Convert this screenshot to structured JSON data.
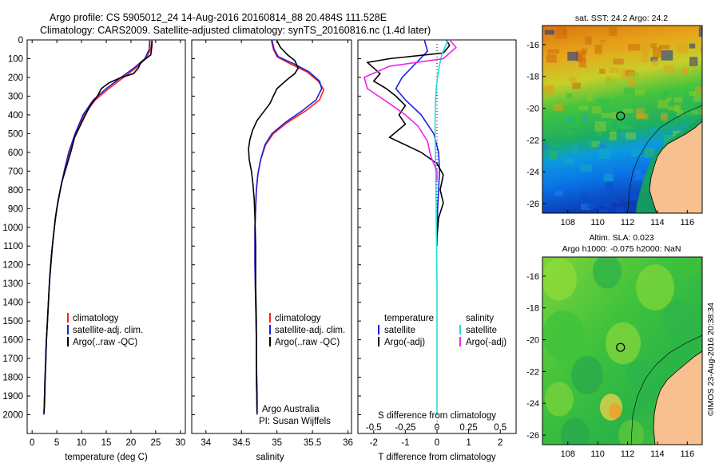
{
  "header": {
    "line1": "Argo profile: CS 5905012_24 14-Aug-2016 20160814_88 20.484S 111.528E",
    "line2": "Climatology: CARS2009. Satellite-adjusted climatology: synTS_20160816.nc (1.4d later)"
  },
  "colors": {
    "climatology": "#ff2020",
    "satellite": "#1f1fdd",
    "argo": "#000000",
    "argo_salinity_diff": "#ee22ee",
    "satellite_salinity_diff": "#22dddd",
    "land": "#f7c08e"
  },
  "chart_data": [
    {
      "type": "line",
      "name": "temperature-profile",
      "xlabel": "temperature (deg C)",
      "ylabel": "",
      "xlim": [
        -1,
        31
      ],
      "ylim": [
        2100,
        0
      ],
      "xticks": [
        0,
        5,
        10,
        15,
        20,
        25,
        30
      ],
      "yticks": [
        0,
        100,
        200,
        300,
        400,
        500,
        600,
        700,
        800,
        900,
        1000,
        1100,
        1200,
        1300,
        1400,
        1500,
        1600,
        1700,
        1800,
        1900,
        2000
      ],
      "legend": [
        "climatology",
        "satellite-adj. clim.",
        "Argo(..raw -QC)"
      ],
      "series": [
        {
          "name": "climatology",
          "color": "#ff2020",
          "points": [
            [
              24.2,
              0
            ],
            [
              24.0,
              50
            ],
            [
              23.0,
              100
            ],
            [
              21.0,
              150
            ],
            [
              18.5,
              200
            ],
            [
              15.5,
              260
            ],
            [
              12.8,
              320
            ],
            [
              10.5,
              400
            ],
            [
              8.8,
              500
            ],
            [
              7.5,
              600
            ],
            [
              6.5,
              700
            ],
            [
              5.7,
              800
            ],
            [
              5.0,
              900
            ],
            [
              4.5,
              1000
            ],
            [
              4.1,
              1100
            ],
            [
              3.8,
              1200
            ],
            [
              3.5,
              1300
            ],
            [
              3.3,
              1400
            ],
            [
              3.1,
              1500
            ],
            [
              2.9,
              1600
            ],
            [
              2.8,
              1700
            ],
            [
              2.6,
              1800
            ],
            [
              2.5,
              1900
            ],
            [
              2.4,
              2000
            ]
          ]
        },
        {
          "name": "satellite-adj. clim.",
          "color": "#1f1fdd",
          "points": [
            [
              23.8,
              0
            ],
            [
              23.7,
              50
            ],
            [
              22.8,
              100
            ],
            [
              20.6,
              150
            ],
            [
              18.0,
              200
            ],
            [
              15.0,
              260
            ],
            [
              12.4,
              320
            ],
            [
              10.3,
              400
            ],
            [
              8.7,
              500
            ],
            [
              7.4,
              600
            ],
            [
              6.5,
              700
            ],
            [
              5.7,
              800
            ],
            [
              5.0,
              900
            ],
            [
              4.5,
              1000
            ],
            [
              4.1,
              1100
            ],
            [
              3.8,
              1200
            ],
            [
              3.5,
              1300
            ],
            [
              3.3,
              1400
            ],
            [
              3.1,
              1500
            ],
            [
              2.9,
              1600
            ],
            [
              2.8,
              1700
            ],
            [
              2.6,
              1800
            ],
            [
              2.5,
              1900
            ],
            [
              2.4,
              2000
            ]
          ]
        },
        {
          "name": "Argo(..raw -QC)",
          "color": "#000000",
          "points": [
            [
              24.3,
              5
            ],
            [
              24.2,
              40
            ],
            [
              24.0,
              80
            ],
            [
              23.0,
              100
            ],
            [
              22.0,
              120
            ],
            [
              21.5,
              150
            ],
            [
              20.5,
              180
            ],
            [
              18.0,
              200
            ],
            [
              15.5,
              230
            ],
            [
              14.0,
              260
            ],
            [
              13.2,
              300
            ],
            [
              12.0,
              340
            ],
            [
              10.8,
              400
            ],
            [
              9.5,
              470
            ],
            [
              8.6,
              520
            ],
            [
              7.8,
              600
            ],
            [
              6.9,
              680
            ],
            [
              6.0,
              760
            ],
            [
              5.3,
              850
            ],
            [
              4.7,
              950
            ],
            [
              4.3,
              1050
            ],
            [
              3.9,
              1150
            ],
            [
              3.6,
              1250
            ],
            [
              3.4,
              1350
            ],
            [
              3.2,
              1450
            ],
            [
              3.0,
              1550
            ],
            [
              2.8,
              1650
            ],
            [
              2.7,
              1750
            ],
            [
              2.6,
              1850
            ],
            [
              2.5,
              1950
            ],
            [
              2.4,
              1990
            ]
          ]
        }
      ]
    },
    {
      "type": "line",
      "name": "salinity-profile",
      "xlabel": "salinity",
      "ylabel": "",
      "xlim": [
        33.8,
        36.05
      ],
      "ylim": [
        2100,
        0
      ],
      "xticks": [
        34,
        34.5,
        35,
        35.5,
        36
      ],
      "legend": [
        "climatology",
        "satellite-adj. clim.",
        "Argo(..raw -QC)"
      ],
      "annotations": [
        "Argo Australia",
        "PI: Susan Wijffels"
      ],
      "series": [
        {
          "name": "climatology",
          "color": "#ff2020",
          "points": [
            [
              34.92,
              0
            ],
            [
              34.95,
              50
            ],
            [
              35.0,
              90
            ],
            [
              35.2,
              130
            ],
            [
              35.42,
              170
            ],
            [
              35.58,
              220
            ],
            [
              35.66,
              265
            ],
            [
              35.6,
              320
            ],
            [
              35.4,
              380
            ],
            [
              35.15,
              440
            ],
            [
              34.95,
              500
            ],
            [
              34.84,
              560
            ],
            [
              34.77,
              640
            ],
            [
              34.73,
              720
            ],
            [
              34.71,
              800
            ],
            [
              34.7,
              900
            ],
            [
              34.69,
              1000
            ],
            [
              34.69,
              1200
            ],
            [
              34.7,
              1400
            ],
            [
              34.71,
              1600
            ],
            [
              34.71,
              1800
            ],
            [
              34.72,
              2000
            ]
          ]
        },
        {
          "name": "satellite-adj. clim.",
          "color": "#1f1fdd",
          "points": [
            [
              34.93,
              0
            ],
            [
              34.96,
              50
            ],
            [
              35.02,
              90
            ],
            [
              35.25,
              130
            ],
            [
              35.45,
              170
            ],
            [
              35.6,
              220
            ],
            [
              35.63,
              260
            ],
            [
              35.55,
              320
            ],
            [
              35.35,
              380
            ],
            [
              35.12,
              440
            ],
            [
              34.93,
              500
            ],
            [
              34.83,
              560
            ],
            [
              34.77,
              640
            ],
            [
              34.73,
              720
            ],
            [
              34.71,
              800
            ],
            [
              34.7,
              900
            ],
            [
              34.69,
              1000
            ],
            [
              34.69,
              1200
            ],
            [
              34.7,
              1400
            ],
            [
              34.71,
              1600
            ],
            [
              34.71,
              1800
            ],
            [
              34.72,
              2000
            ]
          ]
        },
        {
          "name": "Argo(..raw -QC)",
          "color": "#000000",
          "points": [
            [
              35.0,
              5
            ],
            [
              35.05,
              40
            ],
            [
              35.15,
              80
            ],
            [
              35.25,
              110
            ],
            [
              35.3,
              150
            ],
            [
              35.25,
              180
            ],
            [
              35.15,
              210
            ],
            [
              35.0,
              260
            ],
            [
              34.95,
              300
            ],
            [
              34.9,
              340
            ],
            [
              34.82,
              380
            ],
            [
              34.72,
              430
            ],
            [
              34.66,
              480
            ],
            [
              34.62,
              530
            ],
            [
              34.6,
              580
            ],
            [
              34.61,
              640
            ],
            [
              34.64,
              700
            ],
            [
              34.66,
              760
            ],
            [
              34.68,
              850
            ],
            [
              34.69,
              950
            ],
            [
              34.7,
              1100
            ],
            [
              34.7,
              1300
            ],
            [
              34.71,
              1500
            ],
            [
              34.71,
              1700
            ],
            [
              34.72,
              1900
            ],
            [
              34.72,
              1990
            ]
          ]
        }
      ]
    },
    {
      "type": "line",
      "name": "difference-profile",
      "xlabel": "T difference from climatology",
      "xlabel_top": "S difference from climatology",
      "xlim_T": [
        -2.5,
        2.5
      ],
      "xticks_T": [
        -2,
        -1,
        0,
        1,
        2
      ],
      "xticks_S": [
        -0.5,
        -0.25,
        0,
        0.25,
        0.5
      ],
      "ylim": [
        2100,
        0
      ],
      "legend_headings": [
        "temperature",
        "salinity"
      ],
      "legend": [
        "satellite",
        "Argo(-adj)",
        "satellite",
        "Argo(-adj)"
      ],
      "series": [
        {
          "name": "satellite",
          "color": "#1f1fdd",
          "points": [
            [
              -0.4,
              0
            ],
            [
              -0.3,
              60
            ],
            [
              -0.7,
              130
            ],
            [
              -1.1,
              200
            ],
            [
              -1.3,
              260
            ],
            [
              -1.0,
              320
            ],
            [
              -0.5,
              400
            ],
            [
              -0.1,
              500
            ],
            [
              0.05,
              600
            ],
            [
              0.08,
              700
            ],
            [
              0.05,
              800
            ],
            [
              0.02,
              900
            ],
            [
              0.01,
              1000
            ],
            [
              0.0,
              1100
            ]
          ]
        },
        {
          "name": "Argo(-adj)",
          "color": "#000000",
          "points": [
            [
              0.3,
              0
            ],
            [
              0.4,
              30
            ],
            [
              0.2,
              70
            ],
            [
              -1.5,
              100
            ],
            [
              -2.2,
              120
            ],
            [
              -2.0,
              150
            ],
            [
              -1.8,
              180
            ],
            [
              -2.0,
              220
            ],
            [
              -1.6,
              260
            ],
            [
              -1.3,
              300
            ],
            [
              -1.0,
              350
            ],
            [
              -1.2,
              400
            ],
            [
              -1.0,
              450
            ],
            [
              -1.5,
              520
            ],
            [
              -0.5,
              600
            ],
            [
              0.0,
              660
            ],
            [
              0.2,
              720
            ],
            [
              0.1,
              800
            ],
            [
              0.2,
              870
            ],
            [
              0.05,
              950
            ],
            [
              0.0,
              1050
            ]
          ]
        },
        {
          "name": "satellite",
          "color": "#22dddd",
          "points": [
            [
              0.35,
              0
            ],
            [
              0.15,
              80
            ],
            [
              0.05,
              160
            ],
            [
              -0.02,
              250
            ],
            [
              -0.05,
              350
            ],
            [
              -0.06,
              450
            ],
            [
              -0.05,
              600
            ],
            [
              -0.03,
              800
            ],
            [
              -0.02,
              1000
            ],
            [
              0.0,
              1300
            ],
            [
              0.0,
              1600
            ],
            [
              0.0,
              2000
            ]
          ]
        },
        {
          "name": "Argo(-adj)",
          "color": "#ee22ee",
          "points": [
            [
              0.4,
              0
            ],
            [
              0.6,
              40
            ],
            [
              0.2,
              100
            ],
            [
              -1.5,
              140
            ],
            [
              -2.3,
              200
            ],
            [
              -2.2,
              260
            ],
            [
              -1.5,
              340
            ],
            [
              -1.0,
              400
            ],
            [
              -0.6,
              460
            ],
            [
              -0.3,
              540
            ],
            [
              -0.2,
              620
            ],
            [
              0.0,
              700
            ],
            [
              0.0,
              750
            ]
          ]
        }
      ]
    },
    {
      "type": "heatmap",
      "name": "sst-map",
      "title": "sat. SST: 24.2  Argo: 24.2",
      "xticks": [
        108,
        110,
        112,
        114,
        116
      ],
      "yticks": [
        -16,
        -18,
        -20,
        -22,
        -24,
        -26
      ],
      "xlim": [
        106.3,
        117
      ],
      "ylim": [
        -26.6,
        -14.8
      ],
      "marker": [
        111.528,
        -20.484
      ]
    },
    {
      "type": "heatmap",
      "name": "sla-map",
      "title": "Altim. SLA: 0.023",
      "subtitle": "Argo h1000: -0.075 h2000: NaN",
      "xticks": [
        108,
        110,
        112,
        114,
        116
      ],
      "yticks": [
        -16,
        -18,
        -20,
        -22,
        -24,
        -26
      ],
      "xlim": [
        106.3,
        117
      ],
      "ylim": [
        -26.6,
        -14.8
      ],
      "marker": [
        111.528,
        -20.484
      ]
    }
  ],
  "credit": "©IMOS 23-Aug-2016 20:38:34"
}
